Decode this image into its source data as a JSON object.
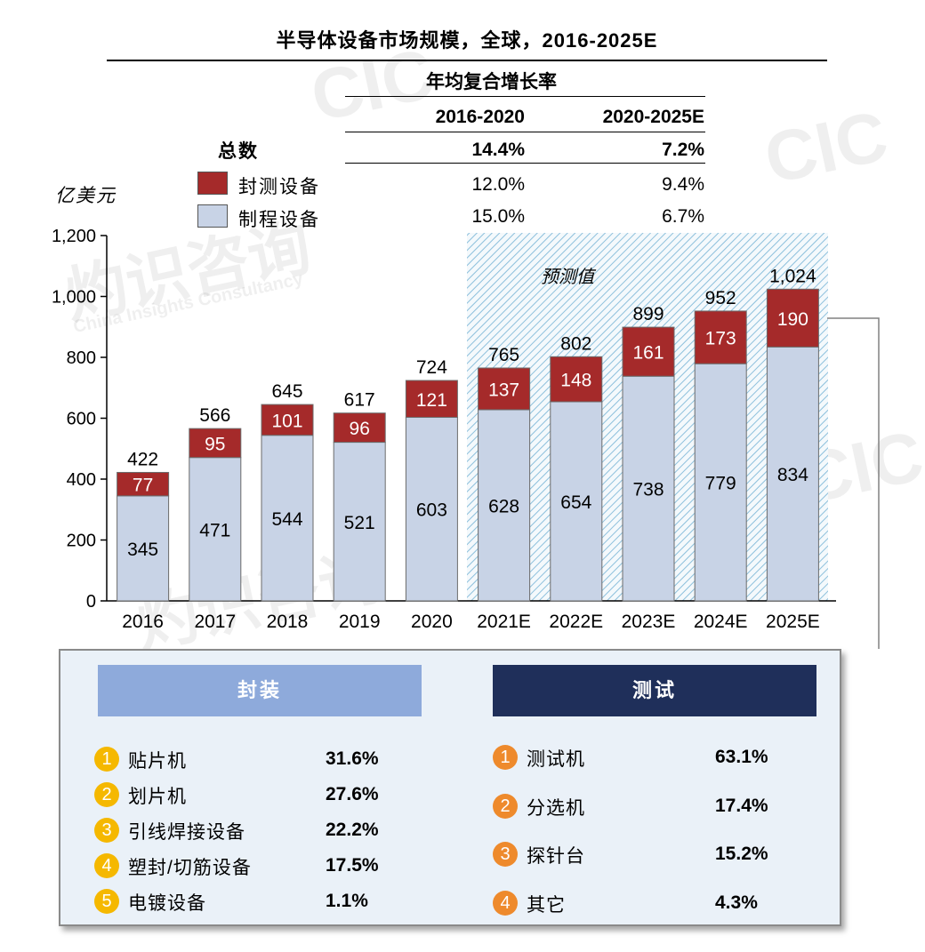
{
  "title": "半导体设备市场规模，全球，2016-2025E",
  "cagr": {
    "header": "年均复合增长率",
    "periods": [
      "2016-2020",
      "2020-2025E"
    ],
    "rows": [
      {
        "label": "总数",
        "values": [
          "14.4%",
          "7.2%"
        ]
      },
      {
        "label": "封测设备",
        "values": [
          "12.0%",
          "9.4%"
        ]
      },
      {
        "label": "制程设备",
        "values": [
          "15.0%",
          "6.7%"
        ]
      }
    ]
  },
  "colors": {
    "test": "#a52a2a",
    "process": "#c8d3e6",
    "forecast_hatch": "#7fb6d6",
    "packaging_header": "#8eaadb",
    "testing_header": "#1f2f5a"
  },
  "chart_data": {
    "type": "bar",
    "stacked": true,
    "ylabel": "亿美元",
    "ylim": [
      0,
      1200
    ],
    "yticks": [
      "0",
      "200",
      "400",
      "600",
      "800",
      "1,000",
      "1,200"
    ],
    "forecast_label": "预测值",
    "categories": [
      "2016",
      "2017",
      "2018",
      "2019",
      "2020",
      "2021E",
      "2022E",
      "2023E",
      "2024E",
      "2025E"
    ],
    "series": [
      {
        "name": "制程设备",
        "values": [
          345,
          471,
          544,
          521,
          603,
          628,
          654,
          738,
          779,
          834
        ]
      },
      {
        "name": "封测设备",
        "values": [
          77,
          95,
          101,
          96,
          121,
          137,
          148,
          161,
          173,
          190
        ]
      }
    ],
    "totals": [
      "422",
      "566",
      "645",
      "617",
      "724",
      "765",
      "802",
      "899",
      "952",
      "1,024"
    ],
    "forecast_start_index": 5
  },
  "packaging": {
    "title": "封装",
    "items": [
      {
        "num": "1",
        "label": "贴片机",
        "value": "31.6%"
      },
      {
        "num": "2",
        "label": "划片机",
        "value": "27.6%"
      },
      {
        "num": "3",
        "label": "引线焊接设备",
        "value": "22.2%"
      },
      {
        "num": "4",
        "label": "塑封/切筋设备",
        "value": "17.5%"
      },
      {
        "num": "5",
        "label": "电镀设备",
        "value": "1.1%"
      }
    ]
  },
  "testing": {
    "title": "测试",
    "items": [
      {
        "num": "1",
        "label": "测试机",
        "value": "63.1%"
      },
      {
        "num": "2",
        "label": "分选机",
        "value": "17.4%"
      },
      {
        "num": "3",
        "label": "探针台",
        "value": "15.2%"
      },
      {
        "num": "4",
        "label": "其它",
        "value": "4.3%"
      }
    ]
  },
  "watermark": {
    "cn": "灼识咨询",
    "en": "China Insights Consultancy",
    "logo": "CIC"
  }
}
